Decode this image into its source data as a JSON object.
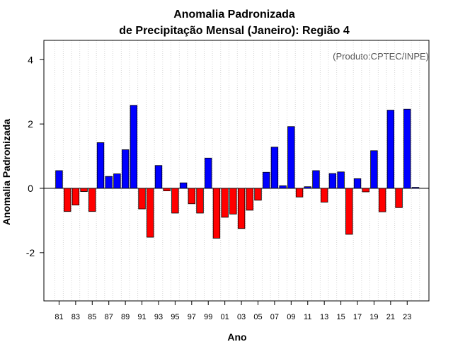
{
  "chart_data": {
    "type": "bar",
    "title": "Anomalia Padronizada",
    "subtitle": "de Precipitação Mensal (Janeiro): Região 4",
    "xlabel": "Ano",
    "ylabel": "Anomalia Padronizada",
    "annotation": "(Produto:CPTEC/INPE)",
    "ylim": [
      -3.5,
      4.6
    ],
    "yticks": [
      -2,
      0,
      2,
      4
    ],
    "ytick_labels": [
      "-2",
      "0",
      "2",
      "4"
    ],
    "xtick_labels": [
      "81",
      "83",
      "85",
      "87",
      "89",
      "91",
      "93",
      "95",
      "97",
      "99",
      "01",
      "03",
      "05",
      "07",
      "09",
      "11",
      "13",
      "15",
      "17",
      "19",
      "21",
      "23"
    ],
    "grid": "vertical dotted",
    "categories": [
      "1981",
      "1982",
      "1983",
      "1984",
      "1985",
      "1986",
      "1987",
      "1988",
      "1989",
      "1990",
      "1991",
      "1992",
      "1993",
      "1994",
      "1995",
      "1996",
      "1997",
      "1998",
      "1999",
      "2000",
      "2001",
      "2002",
      "2003",
      "2004",
      "2005",
      "2006",
      "2007",
      "2008",
      "2009",
      "2010",
      "2011",
      "2012",
      "2013",
      "2014",
      "2015",
      "2016",
      "2017",
      "2018",
      "2019",
      "2020",
      "2021",
      "2022",
      "2023",
      "2024"
    ],
    "values": [
      0.55,
      -0.72,
      -0.52,
      -0.1,
      -0.72,
      1.42,
      0.37,
      0.45,
      1.2,
      2.58,
      -0.64,
      -1.52,
      0.71,
      -0.08,
      -0.77,
      0.17,
      -0.48,
      -0.77,
      0.94,
      -1.55,
      -0.9,
      -0.8,
      -1.25,
      -0.68,
      -0.37,
      0.5,
      1.28,
      0.08,
      1.92,
      -0.27,
      0.05,
      0.55,
      -0.43,
      0.46,
      0.51,
      -1.43,
      0.3,
      -0.11,
      1.17,
      -0.73,
      2.43,
      -0.6,
      2.46,
      0.03
    ],
    "positive_color": "#0000ff",
    "negative_color": "#ff0000",
    "zero_line_color": "#000000"
  }
}
